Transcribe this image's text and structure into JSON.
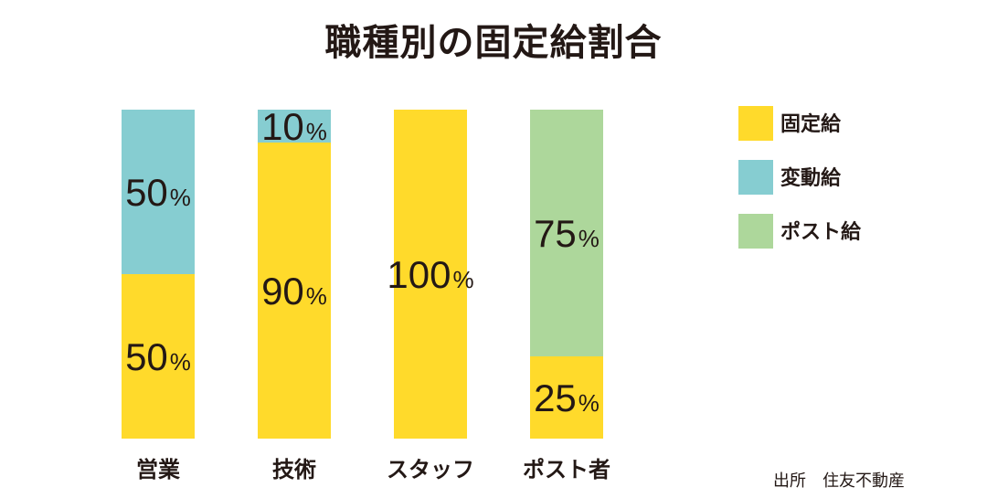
{
  "chart_data": {
    "type": "bar",
    "stacked": true,
    "title": "職種別の固定給割合",
    "categories": [
      "営業",
      "技術",
      "スタッフ",
      "ポスト者"
    ],
    "series": [
      {
        "name": "固定給",
        "color": "#FFDA2B",
        "values": [
          50,
          90,
          100,
          25
        ]
      },
      {
        "name": "変動給",
        "color": "#86CDD1",
        "values": [
          50,
          10,
          0,
          0
        ]
      },
      {
        "name": "ポスト給",
        "color": "#ADD79B",
        "values": [
          0,
          0,
          0,
          75
        ]
      }
    ],
    "value_suffix": "%",
    "ylim": [
      0,
      100
    ],
    "grid": false,
    "legend": "top-right"
  },
  "source": "出所　住友不動産"
}
